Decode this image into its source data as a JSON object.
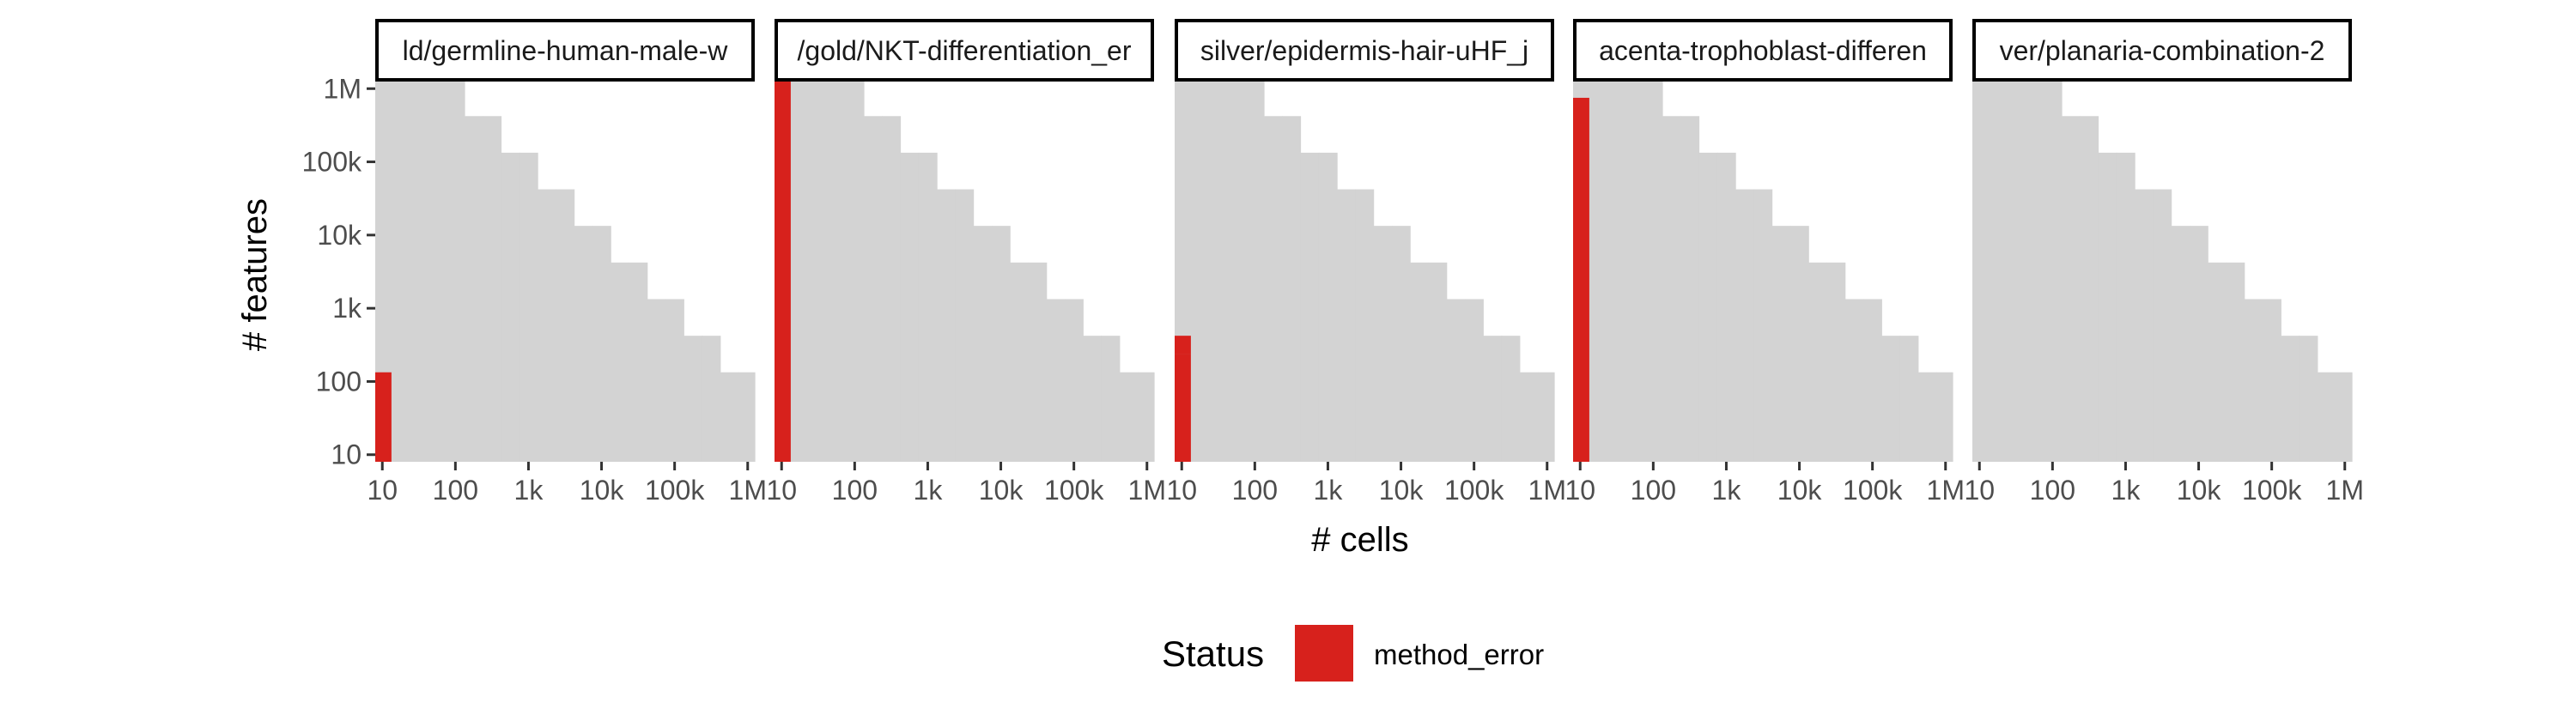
{
  "chart_data": {
    "type": "heatmap",
    "xlabel": "# cells",
    "ylabel": "# features",
    "x_scale": "log10",
    "y_scale": "log10",
    "xlim": [
      8,
      1250000
    ],
    "ylim": [
      8,
      1250000
    ],
    "x_ticks": [
      {
        "value": 10,
        "label": "10"
      },
      {
        "value": 100,
        "label": "100"
      },
      {
        "value": 1000,
        "label": "1k"
      },
      {
        "value": 10000,
        "label": "10k"
      },
      {
        "value": 100000,
        "label": "100k"
      },
      {
        "value": 1000000,
        "label": "1M"
      }
    ],
    "y_ticks": [
      {
        "value": 10,
        "label": "10"
      },
      {
        "value": 100,
        "label": "100"
      },
      {
        "value": 1000,
        "label": "1k"
      },
      {
        "value": 10000,
        "label": "10k"
      },
      {
        "value": 100000,
        "label": "100k"
      },
      {
        "value": 1000000,
        "label": "1M"
      }
    ],
    "grid_x_values": [
      10,
      17.8,
      31.6,
      56.2,
      100,
      178,
      316,
      562,
      1000,
      1780,
      3160,
      5620,
      10000,
      17800,
      31600,
      56200,
      100000,
      178000,
      316000,
      562000,
      1000000
    ],
    "grid_y_values": [
      10,
      17.8,
      31.6,
      56.2,
      100,
      178,
      316,
      562,
      1000,
      1780,
      3160,
      5620,
      10000,
      17800,
      31600,
      56200,
      100000,
      178000,
      316000,
      562000,
      1000000
    ],
    "grid_note": "grey region: cells where #cells x #features <= 1e8",
    "grid_color": "#d3d3d3",
    "panels": [
      {
        "label": "ld/germline-human-male-w",
        "points": [
          {
            "x": 10,
            "y_min": 10,
            "y_max": 100,
            "status": "method_error"
          }
        ]
      },
      {
        "label": "/gold/NKT-differentiation_er",
        "points": [
          {
            "x": 10,
            "y_min": 10,
            "y_max": 1000000,
            "status": "method_error"
          }
        ]
      },
      {
        "label": "silver/epidermis-hair-uHF_j",
        "points": [
          {
            "x": 10,
            "y_min": 10,
            "y_max": 178,
            "status": "method_error"
          },
          {
            "x": 10,
            "y_min": 316,
            "y_max": 316,
            "status": "method_error"
          }
        ]
      },
      {
        "label": "acenta-trophoblast-differen",
        "points": [
          {
            "x": 10,
            "y_min": 10,
            "y_max": 562000,
            "status": "method_error"
          }
        ]
      },
      {
        "label": "ver/planaria-combination-2",
        "points": []
      }
    ],
    "legend": {
      "title": "Status",
      "position": "bottom",
      "entries": [
        {
          "name": "method_error",
          "color": "#d7211c"
        }
      ]
    }
  }
}
